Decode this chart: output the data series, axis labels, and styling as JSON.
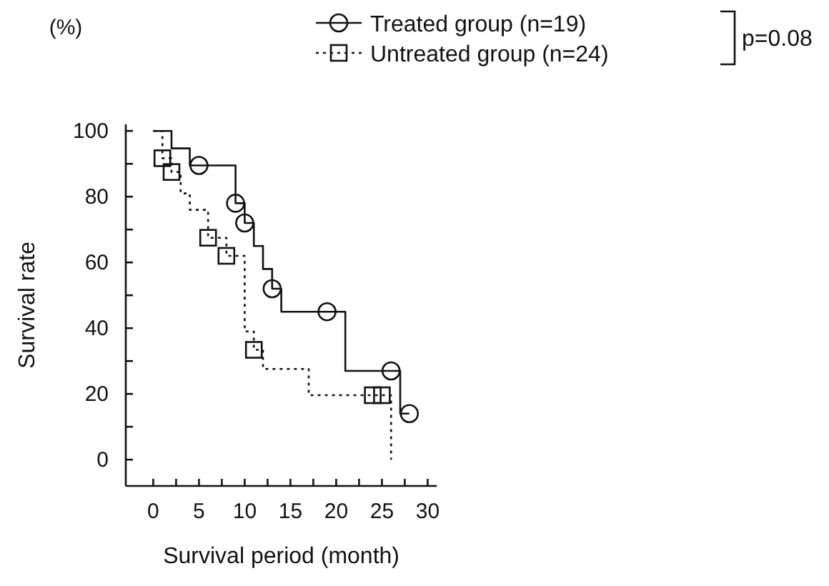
{
  "chart_data": {
    "type": "step",
    "xlabel": "Survival period (month)",
    "ylabel": "Survival rate",
    "annotations": [
      "(%)",
      "p=0.08"
    ],
    "xlim": [
      -3,
      31
    ],
    "ylim": [
      -8,
      102
    ],
    "xticks": [
      0,
      {
        "value": 2.5,
        "label": null
      },
      5,
      {
        "value": 7.5,
        "label": null
      },
      10,
      {
        "value": 12.5,
        "label": null
      },
      15,
      {
        "value": 17.5,
        "label": null
      },
      20,
      {
        "value": 22.5,
        "label": null
      },
      25,
      {
        "value": 27.5,
        "label": null
      },
      30
    ],
    "yticks": [
      0,
      {
        "value": 10,
        "label": null
      },
      20,
      {
        "value": 30,
        "label": null
      },
      40,
      {
        "value": 50,
        "label": null
      },
      60,
      {
        "value": 70,
        "label": null
      },
      80,
      {
        "value": 90,
        "label": null
      },
      100
    ],
    "grid": false,
    "legend": "top right",
    "series": [
      {
        "name": "Treated group (n=19)",
        "color": "#111111",
        "line_style": "solid",
        "x": [
          0,
          2,
          4,
          9,
          10,
          11,
          12,
          13,
          14,
          21,
          27,
          28
        ],
        "values": [
          100,
          94.7,
          89.5,
          78,
          72,
          65,
          58,
          52,
          45,
          27,
          14,
          14
        ]
      },
      {
        "name": "Untreated group (n=24)",
        "color": "#111111",
        "line_style": "dotted",
        "x": [
          0,
          1,
          2,
          3,
          4,
          6,
          8,
          10,
          11,
          12,
          17,
          26
        ],
        "values": [
          100,
          91.7,
          87.5,
          81,
          76,
          67.5,
          62,
          39,
          33.4,
          27.6,
          19.6,
          0
        ]
      },
      {
        "type": "scatter",
        "color": "#111111",
        "marker": "circle",
        "x": [
          5,
          9,
          10,
          13,
          19,
          26,
          28
        ],
        "values": [
          89.5,
          78,
          72,
          52,
          45,
          27,
          14
        ]
      },
      {
        "type": "scatter",
        "color": "#111111",
        "marker": "square",
        "x": [
          1,
          2,
          6,
          8,
          11,
          24,
          25
        ],
        "values": [
          91.7,
          87.5,
          67.5,
          62,
          33.4,
          19.6,
          19.6
        ]
      }
    ]
  }
}
